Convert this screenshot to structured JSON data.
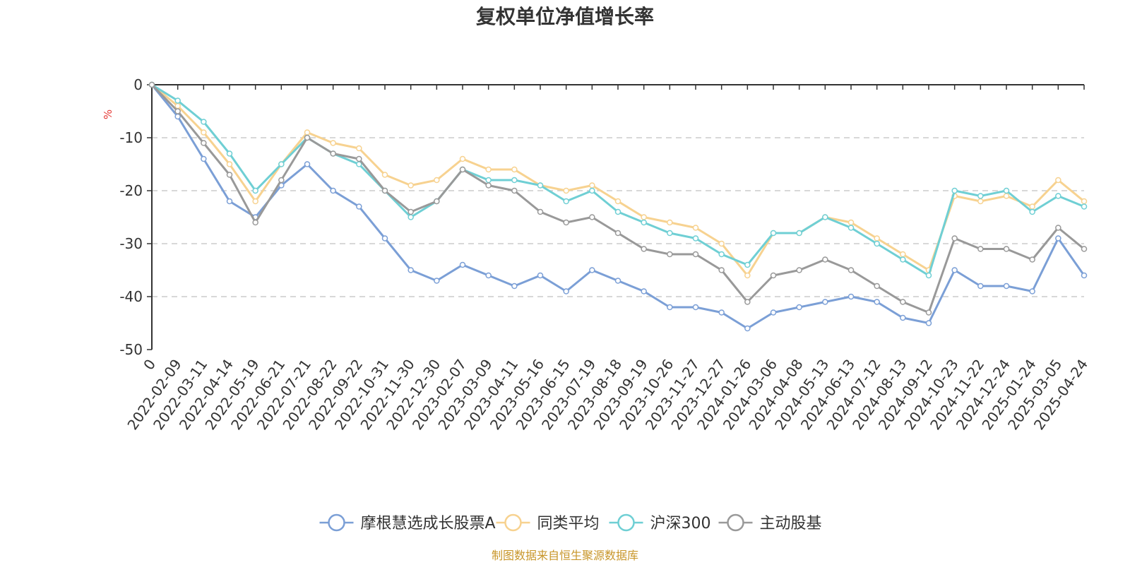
{
  "chart_data": {
    "type": "line",
    "title": "复权单位净值增长率",
    "unit": "%",
    "ylim": [
      -50,
      0
    ],
    "yticks": [
      0,
      -10,
      -20,
      -30,
      -40,
      -50
    ],
    "grid": true,
    "legend_position": "bottom",
    "x_labels": [
      "0",
      "2022-02-09",
      "2022-03-11",
      "2022-04-14",
      "2022-05-19",
      "2022-06-21",
      "2022-07-21",
      "2022-08-22",
      "2022-09-22",
      "2022-10-31",
      "2022-11-30",
      "2022-12-30",
      "2023-02-07",
      "2023-03-09",
      "2023-04-11",
      "2023-05-16",
      "2023-06-15",
      "2023-07-19",
      "2023-08-18",
      "2023-09-19",
      "2023-10-26",
      "2023-11-27",
      "2023-12-27",
      "2024-01-26",
      "2024-03-06",
      "2024-04-08",
      "2024-05-13",
      "2024-06-13",
      "2024-07-12",
      "2024-08-13",
      "2024-09-12",
      "2024-10-23",
      "2024-11-22",
      "2024-12-24",
      "2025-01-24",
      "2025-03-05",
      "2025-04-24"
    ],
    "series": [
      {
        "name": "摩根慧选成长股票A",
        "color": "#7b9fd6",
        "values": [
          0,
          -6,
          -14,
          -22,
          -25,
          -19,
          -15,
          -20,
          -23,
          -29,
          -35,
          -37,
          -34,
          -36,
          -38,
          -36,
          -39,
          -35,
          -37,
          -39,
          -42,
          -42,
          -43,
          -46,
          -43,
          -42,
          -41,
          -40,
          -41,
          -44,
          -45,
          -35,
          -38,
          -38,
          -39,
          -29,
          -36
        ]
      },
      {
        "name": "同类平均",
        "color": "#f7d290",
        "values": [
          0,
          -4,
          -9,
          -15,
          -22,
          -15,
          -9,
          -11,
          -12,
          -17,
          -19,
          -18,
          -14,
          -16,
          -16,
          -19,
          -20,
          -19,
          -22,
          -25,
          -26,
          -27,
          -30,
          -36,
          -28,
          -28,
          -25,
          -26,
          -29,
          -32,
          -35,
          -21,
          -22,
          -21,
          -23,
          -18,
          -22
        ]
      },
      {
        "name": "沪深300",
        "color": "#6fcfd4",
        "values": [
          0,
          -3,
          -7,
          -13,
          -20,
          -15,
          -10,
          -13,
          -15,
          -20,
          -25,
          -22,
          -16,
          -18,
          -18,
          -19,
          -22,
          -20,
          -24,
          -26,
          -28,
          -29,
          -32,
          -34,
          -28,
          -28,
          -25,
          -27,
          -30,
          -33,
          -36,
          -20,
          -21,
          -20,
          -24,
          -21,
          -23
        ]
      },
      {
        "name": "主动股基",
        "color": "#999999",
        "values": [
          0,
          -5,
          -11,
          -17,
          -26,
          -18,
          -10,
          -13,
          -14,
          -20,
          -24,
          -22,
          -16,
          -19,
          -20,
          -24,
          -26,
          -25,
          -28,
          -31,
          -32,
          -32,
          -35,
          -41,
          -36,
          -35,
          -33,
          -35,
          -38,
          -41,
          -43,
          -29,
          -31,
          -31,
          -33,
          -27,
          -31
        ]
      }
    ]
  },
  "source_note": "制图数据来自恒生聚源数据库",
  "colors": {
    "unit_label": "#e53935",
    "source_note": "#c8962a",
    "axis": "#333333",
    "grid": "#cccccc"
  }
}
